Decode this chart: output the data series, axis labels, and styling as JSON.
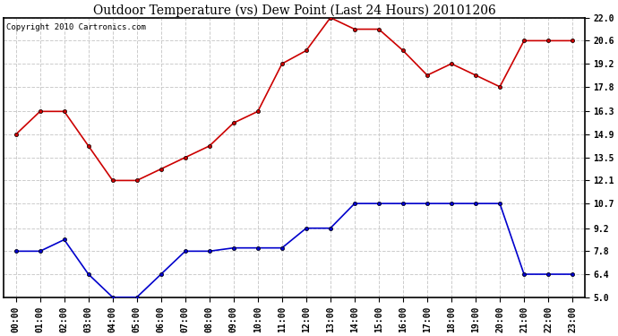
{
  "title": "Outdoor Temperature (vs) Dew Point (Last 24 Hours) 20101206",
  "copyright": "Copyright 2010 Cartronics.com",
  "x_labels": [
    "00:00",
    "01:00",
    "02:00",
    "03:00",
    "04:00",
    "05:00",
    "06:00",
    "07:00",
    "08:00",
    "09:00",
    "10:00",
    "11:00",
    "12:00",
    "13:00",
    "14:00",
    "15:00",
    "16:00",
    "17:00",
    "18:00",
    "19:00",
    "20:00",
    "21:00",
    "22:00",
    "23:00"
  ],
  "temp_red": [
    14.9,
    16.3,
    16.3,
    14.2,
    12.1,
    12.1,
    12.8,
    13.5,
    14.2,
    15.6,
    16.3,
    19.2,
    20.0,
    22.0,
    21.3,
    21.3,
    20.0,
    18.5,
    19.2,
    18.5,
    17.8,
    20.6,
    20.6,
    20.6
  ],
  "dew_blue": [
    7.8,
    7.8,
    8.5,
    6.4,
    5.0,
    5.0,
    6.4,
    7.8,
    7.8,
    8.0,
    8.0,
    8.0,
    9.2,
    9.2,
    10.7,
    10.7,
    10.7,
    10.7,
    10.7,
    10.7,
    10.7,
    6.4,
    6.4,
    6.4
  ],
  "ylim": [
    5.0,
    22.0
  ],
  "yticks": [
    5.0,
    6.4,
    7.8,
    9.2,
    10.7,
    12.1,
    13.5,
    14.9,
    16.3,
    17.8,
    19.2,
    20.6,
    22.0
  ],
  "red_color": "#cc0000",
  "blue_color": "#0000cc",
  "grid_color": "#cccccc",
  "bg_color": "#ffffff",
  "plot_bg_color": "#ffffff",
  "title_fontsize": 10,
  "tick_fontsize": 7,
  "copyright_fontsize": 6.5
}
